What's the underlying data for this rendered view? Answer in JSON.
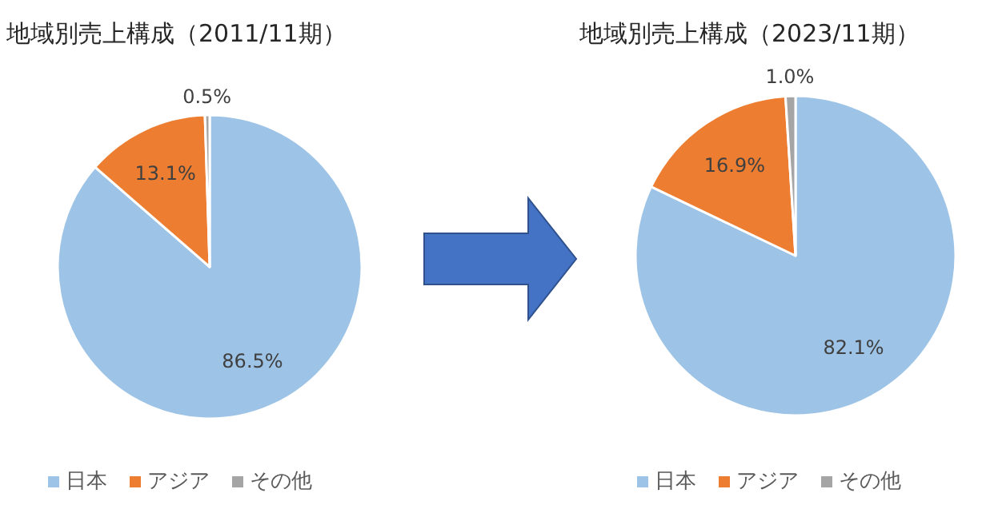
{
  "chart_data": [
    {
      "type": "pie",
      "title": "地域別売上構成（2011/11期）",
      "categories": [
        "日本",
        "アジア",
        "その他"
      ],
      "values": [
        86.5,
        13.1,
        0.5
      ],
      "colors": [
        "#9dc3e6",
        "#ed7d31",
        "#a5a5a5"
      ],
      "value_labels": [
        "86.5%",
        "13.1%",
        "0.5%"
      ],
      "legend": "bottom"
    },
    {
      "type": "pie",
      "title": "地域別売上構成（2023/11期）",
      "categories": [
        "日本",
        "アジア",
        "その他"
      ],
      "values": [
        82.1,
        16.9,
        1.0
      ],
      "colors": [
        "#9dc3e6",
        "#ed7d31",
        "#a5a5a5"
      ],
      "value_labels": [
        "82.1%",
        "16.9%",
        "1.0%"
      ],
      "legend": "bottom"
    }
  ]
}
